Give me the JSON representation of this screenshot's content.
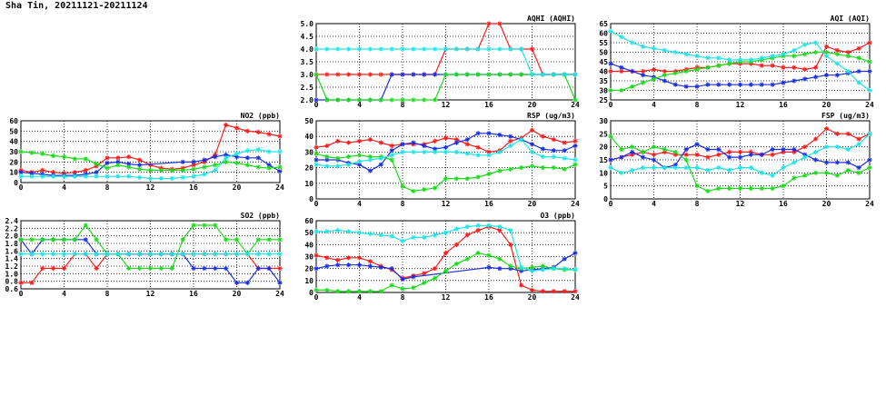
{
  "page": {
    "title": "Sha Tin, 20211121-20211124"
  },
  "colors": {
    "red": "#ff1a1a",
    "blue": "#1a2fe0",
    "green": "#1adb1a",
    "cyan": "#1ae6e6",
    "grid": "#000000"
  },
  "chart_data": [
    {
      "type": "line",
      "title": "AQHI (AQHI)",
      "xlim": [
        0,
        24
      ],
      "ylim": [
        2,
        5
      ],
      "xticks": [
        "0",
        "4",
        "8",
        "12",
        "16",
        "20",
        "24"
      ],
      "yticks": [
        "2.0",
        "2.5",
        "3.0",
        "3.5",
        "4.0",
        "4.5",
        "5.0"
      ],
      "x": [
        0,
        1,
        2,
        3,
        4,
        5,
        6,
        7,
        8,
        9,
        10,
        11,
        12,
        13,
        14,
        15,
        16,
        17,
        18,
        19,
        20,
        21,
        22,
        23,
        24
      ],
      "series": [
        {
          "color": "red",
          "values": [
            3,
            3,
            3,
            3,
            3,
            3,
            3,
            3,
            3,
            3,
            3,
            3,
            4,
            4,
            4,
            4,
            5,
            5,
            4,
            4,
            4,
            3,
            3,
            3,
            3
          ]
        },
        {
          "color": "blue",
          "values": [
            2,
            2,
            2,
            2,
            2,
            2,
            2,
            3,
            3,
            3,
            3,
            3,
            3,
            3,
            3,
            3,
            3,
            3,
            3,
            3,
            3,
            3,
            3,
            3,
            3
          ]
        },
        {
          "color": "green",
          "values": [
            3,
            2,
            2,
            2,
            2,
            2,
            2,
            2,
            2,
            2,
            2,
            2,
            3,
            3,
            3,
            3,
            3,
            3,
            3,
            3,
            3,
            3,
            3,
            3,
            2
          ]
        },
        {
          "color": "cyan",
          "values": [
            4,
            4,
            4,
            4,
            4,
            4,
            4,
            4,
            4,
            4,
            4,
            4,
            4,
            4,
            4,
            4,
            4,
            4,
            4,
            4,
            3,
            3,
            3,
            3,
            3
          ]
        }
      ]
    },
    {
      "type": "line",
      "title": "AQI (AQI)",
      "xlim": [
        0,
        24
      ],
      "ylim": [
        25,
        65
      ],
      "xticks": [
        "0",
        "4",
        "8",
        "12",
        "16",
        "20",
        "24"
      ],
      "yticks": [
        "25",
        "30",
        "35",
        "40",
        "45",
        "50",
        "55",
        "60",
        "65"
      ],
      "x": [
        0,
        1,
        2,
        3,
        4,
        5,
        6,
        7,
        8,
        9,
        10,
        11,
        12,
        13,
        14,
        15,
        16,
        17,
        18,
        19,
        20,
        21,
        22,
        23,
        24
      ],
      "series": [
        {
          "color": "red",
          "values": [
            40,
            40,
            40,
            40,
            41,
            40,
            40,
            41,
            42,
            42,
            43,
            44,
            44,
            44,
            43,
            43,
            42,
            42,
            41,
            42,
            53,
            51,
            50,
            52,
            55
          ]
        },
        {
          "color": "blue",
          "values": [
            44,
            42,
            40,
            38,
            37,
            35,
            33,
            32,
            32,
            33,
            33,
            33,
            33,
            33,
            33,
            33,
            34,
            35,
            36,
            37,
            38,
            38,
            39,
            40,
            40
          ]
        },
        {
          "color": "green",
          "values": [
            30,
            30,
            32,
            34,
            36,
            38,
            39,
            40,
            41,
            42,
            43,
            44,
            45,
            45,
            46,
            47,
            48,
            48,
            49,
            50,
            50,
            49,
            48,
            47,
            45
          ]
        },
        {
          "color": "cyan",
          "values": [
            61,
            58,
            55,
            53,
            52,
            51,
            50,
            49,
            48,
            47,
            47,
            46,
            46,
            46,
            47,
            48,
            49,
            51,
            54,
            55,
            48,
            44,
            40,
            34,
            30
          ]
        }
      ]
    },
    {
      "type": "line",
      "title": "NO2 (ppb)",
      "xlim": [
        0,
        24
      ],
      "ylim": [
        0,
        60
      ],
      "xticks": [
        "0",
        "4",
        "8",
        "12",
        "16",
        "20",
        "24"
      ],
      "yticks": [
        "0",
        "10",
        "20",
        "30",
        "40",
        "50",
        "60"
      ],
      "x": [
        0,
        1,
        2,
        3,
        4,
        5,
        6,
        7,
        8,
        9,
        10,
        11,
        12,
        13,
        14,
        15,
        16,
        17,
        18,
        19,
        20,
        21,
        22,
        23,
        24
      ],
      "series": [
        {
          "color": "red",
          "values": [
            12,
            10,
            12,
            10,
            9,
            10,
            12,
            16,
            24,
            24,
            25,
            22,
            17,
            14,
            13,
            14,
            17,
            20,
            27,
            56,
            53,
            50,
            49,
            47,
            45
          ]
        },
        {
          "color": "blue",
          "values": [
            10,
            9,
            8,
            7,
            7,
            7,
            8,
            10,
            19,
            20,
            18,
            17,
            null,
            null,
            null,
            20,
            20,
            22,
            25,
            27,
            25,
            24,
            24,
            17,
            11
          ]
        },
        {
          "color": "green",
          "values": [
            30,
            29,
            28,
            26,
            25,
            23,
            23,
            18,
            14,
            17,
            15,
            13,
            12,
            12,
            12,
            12,
            13,
            15,
            17,
            20,
            19,
            17,
            15,
            14,
            15
          ]
        },
        {
          "color": "cyan",
          "values": [
            6,
            6,
            6,
            6,
            6,
            6,
            6,
            6,
            6,
            6,
            6,
            5,
            4,
            4,
            4,
            5,
            6,
            8,
            12,
            24,
            28,
            31,
            32,
            30,
            30
          ]
        }
      ]
    },
    {
      "type": "line",
      "title": "RSP (ug/m3)",
      "xlim": [
        0,
        24
      ],
      "ylim": [
        0,
        50
      ],
      "xticks": [
        "0",
        "4",
        "8",
        "12",
        "16",
        "20",
        "24"
      ],
      "yticks": [
        "0",
        "10",
        "20",
        "30",
        "40",
        "50"
      ],
      "x": [
        0,
        1,
        2,
        3,
        4,
        5,
        6,
        7,
        8,
        9,
        10,
        11,
        12,
        13,
        14,
        15,
        16,
        17,
        18,
        19,
        20,
        21,
        22,
        23,
        24
      ],
      "series": [
        {
          "color": "red",
          "values": [
            33,
            34,
            37,
            36,
            37,
            38,
            36,
            34,
            35,
            35,
            35,
            37,
            39,
            38,
            35,
            33,
            30,
            31,
            37,
            39,
            44,
            40,
            38,
            36,
            37
          ]
        },
        {
          "color": "blue",
          "values": [
            25,
            25,
            25,
            23,
            22,
            18,
            22,
            31,
            35,
            36,
            34,
            32,
            33,
            36,
            38,
            42,
            42,
            41,
            40,
            38,
            35,
            32,
            31,
            31,
            34
          ]
        },
        {
          "color": "green",
          "values": [
            29,
            27,
            26,
            27,
            28,
            27,
            27,
            25,
            8,
            5,
            6,
            7,
            13,
            13,
            13,
            14,
            16,
            18,
            19,
            20,
            21,
            20,
            20,
            19,
            22
          ]
        },
        {
          "color": "cyan",
          "values": [
            22,
            21,
            21,
            22,
            24,
            25,
            26,
            28,
            30,
            30,
            30,
            30,
            30,
            30,
            29,
            28,
            28,
            30,
            34,
            38,
            30,
            27,
            27,
            26,
            25
          ]
        }
      ]
    },
    {
      "type": "line",
      "title": "FSP (ug/m3)",
      "xlim": [
        0,
        24
      ],
      "ylim": [
        0,
        30
      ],
      "xticks": [
        "0",
        "4",
        "8",
        "12",
        "16",
        "20",
        "24"
      ],
      "yticks": [
        "0",
        "5",
        "10",
        "15",
        "20",
        "25",
        "30"
      ],
      "x": [
        0,
        1,
        2,
        3,
        4,
        5,
        6,
        7,
        8,
        9,
        10,
        11,
        12,
        13,
        14,
        15,
        16,
        17,
        18,
        19,
        20,
        21,
        22,
        23,
        24
      ],
      "series": [
        {
          "color": "red",
          "values": [
            15,
            16,
            17,
            18,
            17,
            18,
            17,
            17,
            17,
            16,
            17,
            18,
            18,
            18,
            17,
            17,
            18,
            18,
            20,
            23,
            27,
            25,
            25,
            23,
            25
          ]
        },
        {
          "color": "blue",
          "values": [
            15,
            16,
            18,
            16,
            15,
            12,
            13,
            19,
            21,
            19,
            19,
            16,
            16,
            17,
            17,
            19,
            19,
            19,
            17,
            15,
            14,
            14,
            14,
            12,
            15
          ]
        },
        {
          "color": "green",
          "values": [
            24,
            19,
            20,
            18,
            20,
            19,
            18,
            15,
            5,
            3,
            4,
            4,
            4,
            4,
            4,
            4,
            5,
            8,
            9,
            10,
            10,
            9,
            11,
            10,
            12
          ]
        },
        {
          "color": "cyan",
          "values": [
            12,
            10,
            11,
            12,
            12,
            12,
            12,
            12,
            12,
            11,
            12,
            11,
            12,
            12,
            10,
            9,
            12,
            14,
            16,
            18,
            20,
            20,
            19,
            21,
            25
          ]
        }
      ]
    },
    {
      "type": "line",
      "title": "SO2 (ppb)",
      "xlim": [
        0,
        24
      ],
      "ylim": [
        0.6,
        2.4
      ],
      "xticks": [
        "0",
        "4",
        "8",
        "12",
        "16",
        "20",
        "24"
      ],
      "yticks": [
        "0.6",
        "0.8",
        "1.0",
        "1.2",
        "1.4",
        "1.6",
        "1.8",
        "2.0",
        "2.2",
        "2.4"
      ],
      "x": [
        0,
        1,
        2,
        3,
        4,
        5,
        6,
        7,
        8,
        9,
        10,
        11,
        12,
        13,
        14,
        15,
        16,
        17,
        18,
        19,
        20,
        21,
        22,
        23,
        24
      ],
      "series": [
        {
          "color": "red",
          "values": [
            0.76,
            0.76,
            1.14,
            1.14,
            1.14,
            1.52,
            1.52,
            1.14,
            1.52,
            1.52,
            1.52,
            1.52,
            1.52,
            1.52,
            1.52,
            1.52,
            1.52,
            1.52,
            1.52,
            1.52,
            1.52,
            1.52,
            1.14,
            1.14,
            1.14
          ]
        },
        {
          "color": "blue",
          "values": [
            1.9,
            1.52,
            1.9,
            1.9,
            1.9,
            1.9,
            1.9,
            1.52,
            1.52,
            1.52,
            1.52,
            1.52,
            1.52,
            1.52,
            1.52,
            1.52,
            1.14,
            1.14,
            1.14,
            1.14,
            0.76,
            0.76,
            1.14,
            1.14,
            0.76
          ]
        },
        {
          "color": "green",
          "values": [
            1.9,
            1.9,
            1.9,
            1.9,
            1.9,
            1.9,
            2.28,
            1.9,
            1.52,
            1.52,
            1.14,
            1.14,
            1.14,
            1.14,
            1.14,
            1.9,
            2.28,
            2.28,
            2.28,
            1.9,
            1.9,
            1.52,
            1.9,
            1.9,
            1.9
          ]
        },
        {
          "color": "cyan",
          "values": [
            1.52,
            1.52,
            1.52,
            1.52,
            1.52,
            1.52,
            1.52,
            1.52,
            1.52,
            1.52,
            1.52,
            1.52,
            1.52,
            1.52,
            1.52,
            1.52,
            1.52,
            1.52,
            1.52,
            1.52,
            1.52,
            1.52,
            1.52,
            1.52,
            1.52
          ]
        }
      ]
    },
    {
      "type": "line",
      "title": "O3 (ppb)",
      "xlim": [
        0,
        24
      ],
      "ylim": [
        0,
        60
      ],
      "xticks": [
        "0",
        "4",
        "8",
        "12",
        "16",
        "20",
        "24"
      ],
      "yticks": [
        "0",
        "10",
        "20",
        "30",
        "40",
        "50",
        "60"
      ],
      "x": [
        0,
        1,
        2,
        3,
        4,
        5,
        6,
        7,
        8,
        9,
        10,
        11,
        12,
        13,
        14,
        15,
        16,
        17,
        18,
        19,
        20,
        21,
        22,
        23,
        24
      ],
      "series": [
        {
          "color": "red",
          "values": [
            31,
            29,
            27,
            29,
            29,
            26,
            22,
            19,
            12,
            14,
            16,
            20,
            33,
            40,
            48,
            52,
            55,
            52,
            40,
            6,
            2,
            1,
            1,
            1,
            1
          ]
        },
        {
          "color": "blue",
          "values": [
            20,
            22,
            23,
            23,
            23,
            22,
            21,
            20,
            11,
            13,
            null,
            null,
            null,
            null,
            null,
            null,
            21,
            20,
            20,
            18,
            19,
            20,
            21,
            28,
            33
          ]
        },
        {
          "color": "green",
          "values": [
            2,
            2,
            1,
            1,
            1,
            1,
            1,
            6,
            3,
            4,
            8,
            12,
            18,
            24,
            28,
            33,
            31,
            28,
            22,
            20,
            21,
            22,
            20,
            19,
            19
          ]
        },
        {
          "color": "cyan",
          "values": [
            51,
            51,
            52,
            51,
            50,
            49,
            48,
            47,
            43,
            46,
            46,
            48,
            50,
            53,
            55,
            56,
            56,
            55,
            52,
            21,
            18,
            19,
            20,
            20,
            19
          ]
        }
      ]
    }
  ]
}
